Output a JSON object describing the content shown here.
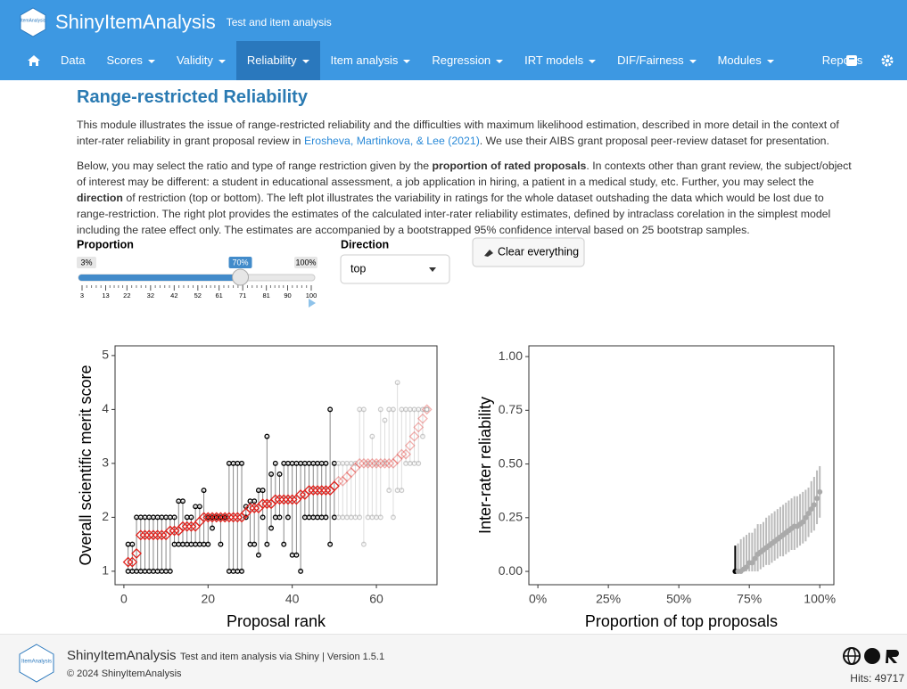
{
  "header": {
    "logo": "ItemAnalysis",
    "title": "ShinyItemAnalysis",
    "subtitle": "Test and item analysis"
  },
  "nav": {
    "active": 3,
    "items": [
      {
        "label": "Data",
        "dropdown": false
      },
      {
        "label": "Scores",
        "dropdown": true
      },
      {
        "label": "Validity",
        "dropdown": true
      },
      {
        "label": "Reliability",
        "dropdown": true
      },
      {
        "label": "Item analysis",
        "dropdown": true
      },
      {
        "label": "Regression",
        "dropdown": true
      },
      {
        "label": "IRT models",
        "dropdown": true
      },
      {
        "label": "DIF/Fairness",
        "dropdown": true
      },
      {
        "label": "Modules",
        "dropdown": true
      },
      {
        "label": "Reports",
        "dropdown": false
      }
    ]
  },
  "content": {
    "title": "Range-restricted Reliability",
    "paragraphs": [
      [
        {
          "text": "This module illustrates the issue of range-restricted reliability and the difficulties with maximum likelihood estimation, described in more detail in the context of inter-rater reliability in grant proposal review in ",
          "style": "plain"
        },
        {
          "text": "Erosheva, Martinkova, & Lee (2021)",
          "style": "link"
        },
        {
          "text": ". We use their AIBS grant proposal peer-review dataset for presentation.",
          "style": "plain"
        }
      ],
      [
        {
          "text": "Below, you may select the ratio and type of range restriction given by the ",
          "style": "plain"
        },
        {
          "text": "proportion of rated proposals",
          "style": "bold"
        },
        {
          "text": ". In contexts other than grant review, the subject/object of interest may be different: a student in educational assessment, a job application in hiring, a patient in a medical study, etc. Further, you may select the ",
          "style": "plain"
        },
        {
          "text": "direction",
          "style": "bold"
        },
        {
          "text": " of restriction (top or bottom). The left plot illustrates the variability in ratings for the whole dataset outshading the data which would be lost due to range-restriction. The right plot provides the estimates of the calculated inter-rater reliability estimates, defined by intraclass corelation in the simplest model including the ratee effect only. The estimates are accompanied by a bootstrapped 95% confidence interval based on 25 bootstrap samples.",
          "style": "plain"
        }
      ]
    ]
  },
  "controls": {
    "proportion_label": "Proportion",
    "min_label": "3%",
    "max_label": "100%",
    "value": 70,
    "value_label": "70%",
    "ticks": [
      3,
      13,
      22,
      32,
      42,
      52,
      61,
      71,
      81,
      90,
      100
    ],
    "direction_label": "Direction",
    "direction": "top",
    "clear_button": "Clear everything"
  },
  "charts": [
    {
      "type": "range",
      "xlabel": "Proposal rank",
      "ylabel": "Overall scientific merit score",
      "xlim": [
        -2.1,
        74.4
      ],
      "xticks": [
        0,
        20,
        40,
        60
      ],
      "ylim": [
        0.75,
        5.18
      ],
      "yticks": [
        1,
        2,
        3,
        4,
        5
      ],
      "retained_color": "#000000",
      "lost_color": "#aaaaaa",
      "mean_color": "#e0201b",
      "x": [
        1,
        2,
        3,
        4,
        5,
        6,
        7,
        8,
        9,
        10,
        11,
        12,
        13,
        14,
        15,
        16,
        17,
        18,
        19,
        20,
        21,
        22,
        23,
        24,
        25,
        26,
        27,
        28,
        29,
        30,
        31,
        32,
        33,
        34,
        35,
        36,
        37,
        38,
        39,
        40,
        41,
        42,
        43,
        44,
        45,
        46,
        47,
        48,
        49,
        50,
        51,
        52,
        53,
        54,
        55,
        56,
        57,
        58,
        59,
        60,
        61,
        62,
        63,
        64,
        65,
        66,
        67,
        68,
        69,
        70,
        71,
        72
      ],
      "mean": [
        1.17,
        1.17,
        1.33,
        1.67,
        1.67,
        1.67,
        1.67,
        1.67,
        1.67,
        1.67,
        1.75,
        1.75,
        1.75,
        1.83,
        1.83,
        1.83,
        1.83,
        1.92,
        2,
        2,
        2,
        2,
        2,
        2,
        2,
        2,
        2,
        2,
        2.08,
        2.17,
        2.17,
        2.17,
        2.25,
        2.25,
        2.25,
        2.33,
        2.33,
        2.33,
        2.33,
        2.33,
        2.33,
        2.42,
        2.42,
        2.5,
        2.5,
        2.5,
        2.5,
        2.5,
        2.5,
        2.58,
        2.67,
        2.67,
        2.75,
        2.83,
        2.92,
        3,
        3,
        3,
        3,
        3,
        3,
        3,
        3,
        3,
        3.08,
        3.17,
        3.17,
        3.33,
        3.5,
        3.67,
        3.83,
        4
      ],
      "min": [
        1,
        1,
        1,
        1,
        1,
        1,
        1,
        1,
        1,
        1,
        1,
        1.5,
        1.5,
        1.5,
        1.5,
        1.5,
        1.5,
        1.5,
        1.5,
        1.5,
        1.8,
        2,
        1.5,
        2,
        1,
        1,
        1,
        1,
        2,
        1.5,
        1.5,
        1.3,
        2,
        1.5,
        1.8,
        2,
        2,
        1.5,
        2,
        1.3,
        1.3,
        1,
        2,
        2,
        2,
        2,
        2,
        2,
        1.5,
        2,
        2,
        2,
        2,
        2,
        2,
        2,
        1.5,
        2,
        2,
        2,
        2,
        3,
        2.5,
        2,
        2.5,
        2.5,
        3,
        3,
        3,
        3,
        3.5,
        4
      ],
      "max": [
        1.5,
        1.5,
        2,
        2,
        2,
        2,
        2,
        2,
        2,
        2,
        2,
        2,
        2.3,
        2.3,
        2,
        2,
        2.2,
        2.2,
        2.5,
        2,
        2,
        2,
        2,
        2,
        3,
        3,
        3,
        3,
        2.2,
        2.3,
        2.3,
        2.5,
        2.5,
        3.5,
        2.8,
        3,
        2.8,
        3,
        3,
        3,
        3,
        3,
        3,
        3,
        3,
        3,
        3,
        3,
        4,
        3,
        3,
        3,
        3,
        3,
        3,
        4,
        4,
        3,
        3.5,
        3,
        4,
        3.8,
        4,
        4,
        4.5,
        4,
        4,
        4,
        4,
        4,
        4,
        4
      ]
    },
    {
      "type": "errorbar",
      "xlabel": "Proportion of top proposals",
      "ylabel": "Inter-rater reliability",
      "xlim": [
        -3.2,
        105
      ],
      "xticks": [
        {
          "value": 0,
          "label": "0%"
        },
        {
          "value": 25,
          "label": "25%"
        },
        {
          "value": 50,
          "label": "50%"
        },
        {
          "value": 75,
          "label": "75%"
        },
        {
          "value": 100,
          "label": "100%"
        }
      ],
      "ylim": [
        -0.062,
        1.05
      ],
      "yticks": [
        {
          "value": 0,
          "label": "0.00"
        },
        {
          "value": 0.25,
          "label": "0.25"
        },
        {
          "value": 0.5,
          "label": "0.50"
        },
        {
          "value": 0.75,
          "label": "0.75"
        },
        {
          "value": 1,
          "label": "1.00"
        }
      ],
      "color": "#aaaaaa",
      "highlight_color": "#000000",
      "x": [
        70,
        71,
        72,
        73,
        74,
        75,
        76,
        77,
        78,
        79,
        80,
        81,
        82,
        83,
        84,
        85,
        86,
        87,
        88,
        89,
        90,
        91,
        92,
        93,
        94,
        95,
        96,
        97,
        98,
        99,
        100
      ],
      "values": [
        0,
        0,
        0,
        0.01,
        0.02,
        0.04,
        0.04,
        0.06,
        0.08,
        0.09,
        0.1,
        0.11,
        0.12,
        0.13,
        0.14,
        0.15,
        0.16,
        0.17,
        0.18,
        0.19,
        0.2,
        0.21,
        0.21,
        0.22,
        0.23,
        0.25,
        0.27,
        0.29,
        0.31,
        0.34,
        0.37
      ],
      "lower": [
        0,
        0,
        0,
        0,
        0,
        0,
        0,
        0,
        0,
        0.01,
        0.02,
        0.03,
        0.03,
        0.04,
        0.05,
        0.06,
        0.07,
        0.07,
        0.08,
        0.09,
        0.1,
        0.1,
        0.11,
        0.12,
        0.13,
        0.14,
        0.16,
        0.18,
        0.19,
        0.22,
        0.25
      ],
      "upper": [
        0.12,
        0.13,
        0.15,
        0.16,
        0.17,
        0.18,
        0.18,
        0.2,
        0.22,
        0.22,
        0.23,
        0.25,
        0.26,
        0.27,
        0.28,
        0.29,
        0.3,
        0.31,
        0.32,
        0.33,
        0.34,
        0.35,
        0.35,
        0.36,
        0.37,
        0.38,
        0.39,
        0.42,
        0.44,
        0.47,
        0.49
      ]
    }
  ],
  "footer": {
    "logo": "ItemAnalysis",
    "title": "ShinyItemAnalysis",
    "subtitle": "Test and item analysis via Shiny | Version 1.5.1",
    "copyright": "© 2024 ShinyItemAnalysis",
    "hits": "Hits: 49717"
  }
}
